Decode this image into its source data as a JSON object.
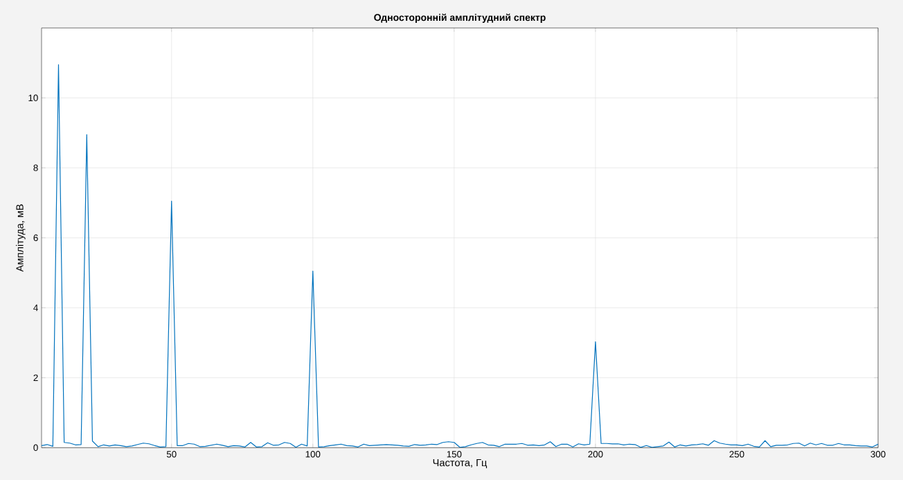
{
  "chart_data": {
    "type": "line",
    "title": "Односторонній амплітудний спектр",
    "xlabel": "Частота, Гц",
    "ylabel": "Амплітуда, мВ",
    "x": [
      4,
      6,
      8,
      10,
      12,
      14,
      16,
      18,
      20,
      22,
      24,
      26,
      28,
      30,
      32,
      34,
      36,
      38,
      40,
      42,
      44,
      46,
      48,
      50,
      52,
      54,
      56,
      58,
      60,
      62,
      64,
      66,
      68,
      70,
      72,
      74,
      76,
      78,
      80,
      82,
      84,
      86,
      88,
      90,
      92,
      94,
      96,
      98,
      100,
      102,
      104,
      106,
      108,
      110,
      112,
      114,
      116,
      118,
      120,
      122,
      124,
      126,
      128,
      130,
      132,
      134,
      136,
      138,
      140,
      142,
      144,
      146,
      148,
      150,
      152,
      154,
      156,
      158,
      160,
      162,
      164,
      166,
      168,
      170,
      172,
      174,
      176,
      178,
      180,
      182,
      184,
      186,
      188,
      190,
      192,
      194,
      196,
      198,
      200,
      202,
      204,
      206,
      208,
      210,
      212,
      214,
      216,
      218,
      220,
      222,
      224,
      226,
      228,
      230,
      232,
      234,
      236,
      238,
      240,
      242,
      244,
      246,
      248,
      250,
      252,
      254,
      256,
      258,
      260,
      262,
      264,
      266,
      268,
      270,
      272,
      274,
      276,
      278,
      280,
      282,
      284,
      286,
      288,
      290,
      292,
      294,
      296,
      298,
      300
    ],
    "series": [
      {
        "color": "#0072bd",
        "values": [
          0.06,
          0.09,
          0.04,
          10.95,
          0.15,
          0.13,
          0.08,
          0.09,
          8.95,
          0.19,
          0.03,
          0.08,
          0.05,
          0.08,
          0.06,
          0.03,
          0.05,
          0.09,
          0.13,
          0.11,
          0.06,
          0.02,
          0.03,
          7.05,
          0.06,
          0.06,
          0.12,
          0.1,
          0.03,
          0.04,
          0.07,
          0.1,
          0.07,
          0.03,
          0.06,
          0.05,
          0.02,
          0.15,
          0.02,
          0.03,
          0.14,
          0.07,
          0.08,
          0.15,
          0.12,
          0.01,
          0.1,
          0.05,
          5.05,
          0.02,
          0.03,
          0.06,
          0.08,
          0.1,
          0.06,
          0.05,
          0.02,
          0.1,
          0.06,
          0.07,
          0.08,
          0.09,
          0.08,
          0.07,
          0.05,
          0.04,
          0.09,
          0.07,
          0.08,
          0.1,
          0.09,
          0.15,
          0.17,
          0.15,
          0.01,
          0.03,
          0.08,
          0.12,
          0.15,
          0.08,
          0.07,
          0.03,
          0.1,
          0.1,
          0.1,
          0.12,
          0.07,
          0.08,
          0.06,
          0.08,
          0.17,
          0.03,
          0.1,
          0.1,
          0.02,
          0.11,
          0.08,
          0.1,
          3.03,
          0.12,
          0.12,
          0.11,
          0.11,
          0.08,
          0.1,
          0.09,
          0.01,
          0.06,
          0.01,
          0.03,
          0.05,
          0.16,
          0.02,
          0.08,
          0.05,
          0.08,
          0.09,
          0.11,
          0.07,
          0.2,
          0.13,
          0.1,
          0.08,
          0.08,
          0.06,
          0.1,
          0.04,
          0.02,
          0.2,
          0.03,
          0.07,
          0.07,
          0.08,
          0.12,
          0.13,
          0.05,
          0.13,
          0.08,
          0.12,
          0.07,
          0.07,
          0.12,
          0.08,
          0.08,
          0.06,
          0.05,
          0.05,
          0.02,
          0.1
        ]
      }
    ],
    "xlim": [
      4,
      300
    ],
    "ylim": [
      0,
      12
    ],
    "xticks": [
      50,
      100,
      150,
      200,
      250,
      300
    ],
    "yticks": [
      0,
      2,
      4,
      6,
      8,
      10
    ],
    "grid": true,
    "marker": "none",
    "line_style": "solid"
  }
}
